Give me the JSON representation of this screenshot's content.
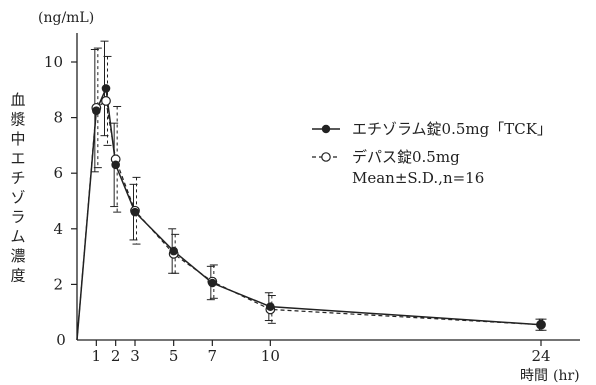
{
  "chart_data": {
    "type": "line",
    "ylabel": "血漿中エチゾラム濃度",
    "y_unit": "(ng/mL)",
    "xlabel": "時間",
    "x_unit": "(hr)",
    "ylim": [
      0,
      11
    ],
    "yticks": [
      0,
      2,
      4,
      6,
      8,
      10
    ],
    "xlim": [
      0,
      24.5
    ],
    "xticks": [
      1,
      2,
      3,
      5,
      7,
      10,
      24
    ],
    "origin_label": "0",
    "grid": false,
    "legend_position": "right",
    "note": "Mean±S.D.,n=16",
    "series": [
      {
        "name": "エチゾラム錠0.5mg「TCK」",
        "style": "solid",
        "marker": "filled-circle",
        "x": [
          0,
          1,
          1.5,
          2,
          3,
          5,
          7,
          10,
          24
        ],
        "y": [
          0,
          8.25,
          9.05,
          6.3,
          4.6,
          3.2,
          2.05,
          1.2,
          0.55
        ],
        "sd": [
          0,
          2.2,
          1.7,
          1.5,
          1.0,
          0.8,
          0.6,
          0.5,
          0.2
        ]
      },
      {
        "name": "デパス錠0.5mg",
        "style": "dashed",
        "marker": "open-circle",
        "x": [
          0,
          1,
          1.5,
          2,
          3,
          5,
          7,
          10,
          24
        ],
        "y": [
          0,
          8.35,
          8.6,
          6.5,
          4.65,
          3.1,
          2.1,
          1.1,
          0.55
        ],
        "sd": [
          0,
          2.15,
          1.6,
          1.9,
          1.2,
          0.7,
          0.6,
          0.5,
          0.2
        ]
      }
    ]
  }
}
